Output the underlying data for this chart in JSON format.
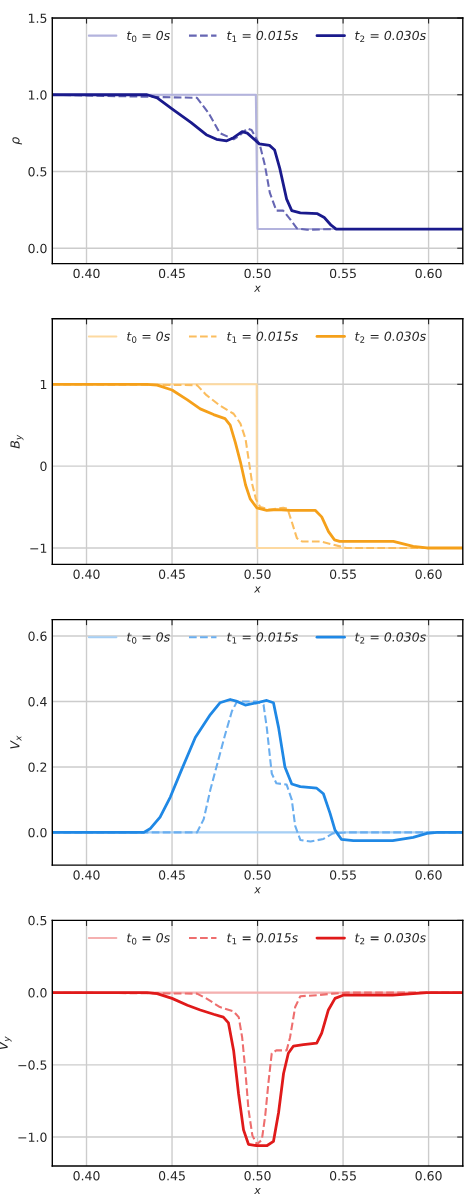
{
  "chart_data": [
    {
      "type": "line",
      "xlabel": "x",
      "ylabel": "ρ",
      "xlim": [
        0.38,
        0.62
      ],
      "xticks": [
        {
          "value": 0.4,
          "label": "0.40"
        },
        {
          "value": 0.45,
          "label": "0.45"
        },
        {
          "value": 0.5,
          "label": "0.50"
        },
        {
          "value": 0.55,
          "label": "0.55"
        },
        {
          "value": 0.6,
          "label": "0.60"
        }
      ],
      "ylim": [
        -0.1,
        1.5
      ],
      "yticks": [
        {
          "value": 0,
          "label": "0.0"
        },
        {
          "value": 0.5,
          "label": "0.5"
        },
        {
          "value": 1,
          "label": "1.0"
        },
        {
          "value": 1.5,
          "label": "1.5"
        }
      ],
      "grid": true,
      "legend": "top",
      "marker": "none",
      "series": [
        {
          "name": "t$_{0}$ = 0s",
          "color": "#b3b3dd",
          "line_style": "solid",
          "x": [
            0.38,
            0.499,
            0.5,
            0.62
          ],
          "values": [
            1,
            1,
            0.125,
            0.125
          ]
        },
        {
          "name": "t$_{1}$ = 0.015s",
          "color": "#6666b3",
          "line_style": "dashed",
          "x": [
            0.38,
            0.4646,
            0.4714,
            0.478,
            0.486,
            0.489,
            0.494,
            0.4965,
            0.5014,
            0.5043,
            0.5072,
            0.511,
            0.515,
            0.519,
            0.523,
            0.529,
            0.544,
            0.62
          ],
          "values": [
            1,
            0.98,
            0.88,
            0.75,
            0.71,
            0.73,
            0.78,
            0.77,
            0.67,
            0.54,
            0.36,
            0.245,
            0.245,
            0.19,
            0.13,
            0.12,
            0.125,
            0.125
          ]
        },
        {
          "name": "t$_{2}$ = 0.030s",
          "color": "#1a1a8c",
          "line_style": "solid",
          "x": [
            0.38,
            0.4354,
            0.4413,
            0.451,
            0.461,
            0.47,
            0.476,
            0.482,
            0.486,
            0.491,
            0.494,
            0.498,
            0.501,
            0.507,
            0.51,
            0.513,
            0.517,
            0.52,
            0.525,
            0.535,
            0.539,
            0.543,
            0.546,
            0.62
          ],
          "values": [
            1,
            1,
            0.98,
            0.9,
            0.82,
            0.74,
            0.71,
            0.7,
            0.72,
            0.76,
            0.75,
            0.71,
            0.68,
            0.67,
            0.64,
            0.52,
            0.32,
            0.245,
            0.23,
            0.225,
            0.2,
            0.15,
            0.125,
            0.125
          ]
        }
      ]
    },
    {
      "type": "line",
      "xlabel": "x",
      "ylabel": "B$_{y}$",
      "xlim": [
        0.38,
        0.62
      ],
      "xticks": [
        {
          "value": 0.4,
          "label": "0.40"
        },
        {
          "value": 0.45,
          "label": "0.45"
        },
        {
          "value": 0.5,
          "label": "0.50"
        },
        {
          "value": 0.55,
          "label": "0.55"
        },
        {
          "value": 0.6,
          "label": "0.60"
        }
      ],
      "ylim": [
        -1.2,
        1.8
      ],
      "yticks": [
        {
          "value": -1,
          "label": "−1"
        },
        {
          "value": 0,
          "label": "0"
        },
        {
          "value": 1,
          "label": "1"
        }
      ],
      "grid": true,
      "legend": "top",
      "marker": "none",
      "series": [
        {
          "name": "t$_{0}$ = 0s",
          "color": "#fdd9a0",
          "line_style": "solid",
          "x": [
            0.38,
            0.4995,
            0.4996,
            0.62
          ],
          "values": [
            1,
            1,
            -1,
            -1
          ]
        },
        {
          "name": "t$_{1}$ = 0.015s",
          "color": "#fbbd5e",
          "line_style": "dashed",
          "x": [
            0.38,
            0.4646,
            0.47,
            0.478,
            0.486,
            0.49,
            0.493,
            0.495,
            0.497,
            0.499,
            0.5016,
            0.507,
            0.515,
            0.5175,
            0.52,
            0.523,
            0.526,
            0.537,
            0.5444,
            0.552,
            0.62
          ],
          "values": [
            1,
            0.99,
            0.87,
            0.74,
            0.64,
            0.52,
            0.33,
            0.05,
            -0.23,
            -0.4,
            -0.5,
            -0.53,
            -0.51,
            -0.52,
            -0.68,
            -0.88,
            -0.92,
            -0.92,
            -0.96,
            -1,
            -1
          ]
        },
        {
          "name": "t$_{2}$ = 0.030s",
          "color": "#f5a01a",
          "line_style": "solid",
          "x": [
            0.38,
            0.4354,
            0.4413,
            0.45,
            0.459,
            0.4665,
            0.4743,
            0.481,
            0.484,
            0.487,
            0.49,
            0.493,
            0.4957,
            0.4996,
            0.5054,
            0.5113,
            0.519,
            0.5337,
            0.5375,
            0.5415,
            0.545,
            0.548,
            0.5794,
            0.591,
            0.599,
            0.62
          ],
          "values": [
            1,
            1,
            0.99,
            0.93,
            0.81,
            0.7,
            0.63,
            0.58,
            0.5,
            0.29,
            0.05,
            -0.23,
            -0.4,
            -0.51,
            -0.54,
            -0.53,
            -0.54,
            -0.54,
            -0.62,
            -0.8,
            -0.9,
            -0.92,
            -0.92,
            -0.98,
            -1,
            -1
          ]
        }
      ]
    },
    {
      "type": "line",
      "xlabel": "x",
      "ylabel": "V$_{x}$",
      "xlim": [
        0.38,
        0.62
      ],
      "xticks": [
        {
          "value": 0.4,
          "label": "0.40"
        },
        {
          "value": 0.45,
          "label": "0.45"
        },
        {
          "value": 0.5,
          "label": "0.50"
        },
        {
          "value": 0.55,
          "label": "0.55"
        },
        {
          "value": 0.6,
          "label": "0.60"
        }
      ],
      "ylim": [
        -0.1,
        0.65
      ],
      "yticks": [
        {
          "value": 0,
          "label": "0.0"
        },
        {
          "value": 0.2,
          "label": "0.2"
        },
        {
          "value": 0.4,
          "label": "0.4"
        },
        {
          "value": 0.6,
          "label": "0.6"
        }
      ],
      "grid": true,
      "legend": "top",
      "marker": "none",
      "series": [
        {
          "name": "t$_{0}$ = 0s",
          "color": "#a6cff5",
          "line_style": "solid",
          "x": [
            0.38,
            0.62
          ],
          "values": [
            0,
            0
          ]
        },
        {
          "name": "t$_{1}$ = 0.015s",
          "color": "#6aaeef",
          "line_style": "dashed",
          "x": [
            0.38,
            0.4646,
            0.4685,
            0.4724,
            0.477,
            0.4811,
            0.485,
            0.488,
            0.4938,
            0.4996,
            0.5035,
            0.5054,
            0.5083,
            0.511,
            0.517,
            0.52,
            0.522,
            0.525,
            0.531,
            0.5385,
            0.544,
            0.552,
            0.62
          ],
          "values": [
            0,
            0,
            0.04,
            0.13,
            0.22,
            0.3,
            0.37,
            0.4,
            0.4,
            0.4,
            0.39,
            0.32,
            0.18,
            0.15,
            0.146,
            0.1,
            0.02,
            -0.023,
            -0.028,
            -0.02,
            -0.003,
            0,
            0
          ]
        },
        {
          "name": "t$_{2}$ = 0.030s",
          "color": "#1f88e5",
          "line_style": "solid",
          "x": [
            0.38,
            0.4335,
            0.4374,
            0.443,
            0.449,
            0.4558,
            0.4636,
            0.4724,
            0.478,
            0.484,
            0.488,
            0.4928,
            0.4996,
            0.5054,
            0.5093,
            0.5123,
            0.516,
            0.52,
            0.525,
            0.5346,
            0.5385,
            0.5424,
            0.5453,
            0.549,
            0.556,
            0.579,
            0.591,
            0.599,
            0.605,
            0.62
          ],
          "values": [
            0,
            0,
            0.012,
            0.047,
            0.108,
            0.194,
            0.29,
            0.36,
            0.396,
            0.406,
            0.4,
            0.389,
            0.396,
            0.403,
            0.396,
            0.32,
            0.2,
            0.148,
            0.14,
            0.135,
            0.118,
            0.058,
            0.007,
            -0.021,
            -0.025,
            -0.025,
            -0.015,
            -0.003,
            0,
            0
          ]
        }
      ]
    },
    {
      "type": "line",
      "xlabel": "x",
      "ylabel": "V$_{y}$",
      "xlim": [
        0.38,
        0.62
      ],
      "xticks": [
        {
          "value": 0.4,
          "label": "0.40"
        },
        {
          "value": 0.45,
          "label": "0.45"
        },
        {
          "value": 0.5,
          "label": "0.50"
        },
        {
          "value": 0.55,
          "label": "0.55"
        },
        {
          "value": 0.6,
          "label": "0.60"
        }
      ],
      "ylim": [
        -1.2,
        0.5
      ],
      "yticks": [
        {
          "value": -1,
          "label": "−1.0"
        },
        {
          "value": -0.5,
          "label": "−0.5"
        },
        {
          "value": 0,
          "label": "0.0"
        },
        {
          "value": 0.5,
          "label": "0.5"
        }
      ],
      "grid": true,
      "legend": "top",
      "marker": "none",
      "series": [
        {
          "name": "t$_{0}$ = 0s",
          "color": "#f5b0b0",
          "line_style": "solid",
          "x": [
            0.38,
            0.62
          ],
          "values": [
            0,
            0
          ]
        },
        {
          "name": "t$_{1}$ = 0.015s",
          "color": "#ee6e6e",
          "line_style": "dashed",
          "x": [
            0.38,
            0.4646,
            0.47,
            0.478,
            0.486,
            0.489,
            0.491,
            0.4928,
            0.4947,
            0.497,
            0.4996,
            0.5025,
            0.5045,
            0.5064,
            0.5083,
            0.511,
            0.517,
            0.519,
            0.522,
            0.525,
            0.5346,
            0.544,
            0.552,
            0.62
          ],
          "values": [
            0,
            -0.007,
            -0.04,
            -0.1,
            -0.13,
            -0.17,
            -0.31,
            -0.53,
            -0.81,
            -0.99,
            -1.05,
            -1.02,
            -0.85,
            -0.62,
            -0.42,
            -0.4,
            -0.4,
            -0.31,
            -0.1,
            -0.025,
            -0.018,
            -0.007,
            0,
            0
          ]
        },
        {
          "name": "t$_{2}$ = 0.030s",
          "color": "#e01a1a",
          "line_style": "solid",
          "x": [
            0.38,
            0.4354,
            0.4413,
            0.45,
            0.459,
            0.4665,
            0.4743,
            0.48,
            0.483,
            0.486,
            0.4889,
            0.4918,
            0.4947,
            0.4996,
            0.5054,
            0.5093,
            0.5123,
            0.5152,
            0.518,
            0.521,
            0.5268,
            0.5346,
            0.5375,
            0.5414,
            0.5453,
            0.55,
            0.579,
            0.599,
            0.62
          ],
          "values": [
            0,
            0,
            -0.007,
            -0.04,
            -0.087,
            -0.12,
            -0.15,
            -0.17,
            -0.21,
            -0.4,
            -0.7,
            -0.95,
            -1.05,
            -1.06,
            -1.06,
            -1.03,
            -0.83,
            -0.56,
            -0.42,
            -0.37,
            -0.36,
            -0.35,
            -0.28,
            -0.12,
            -0.04,
            -0.018,
            -0.018,
            0,
            0
          ]
        }
      ]
    }
  ]
}
